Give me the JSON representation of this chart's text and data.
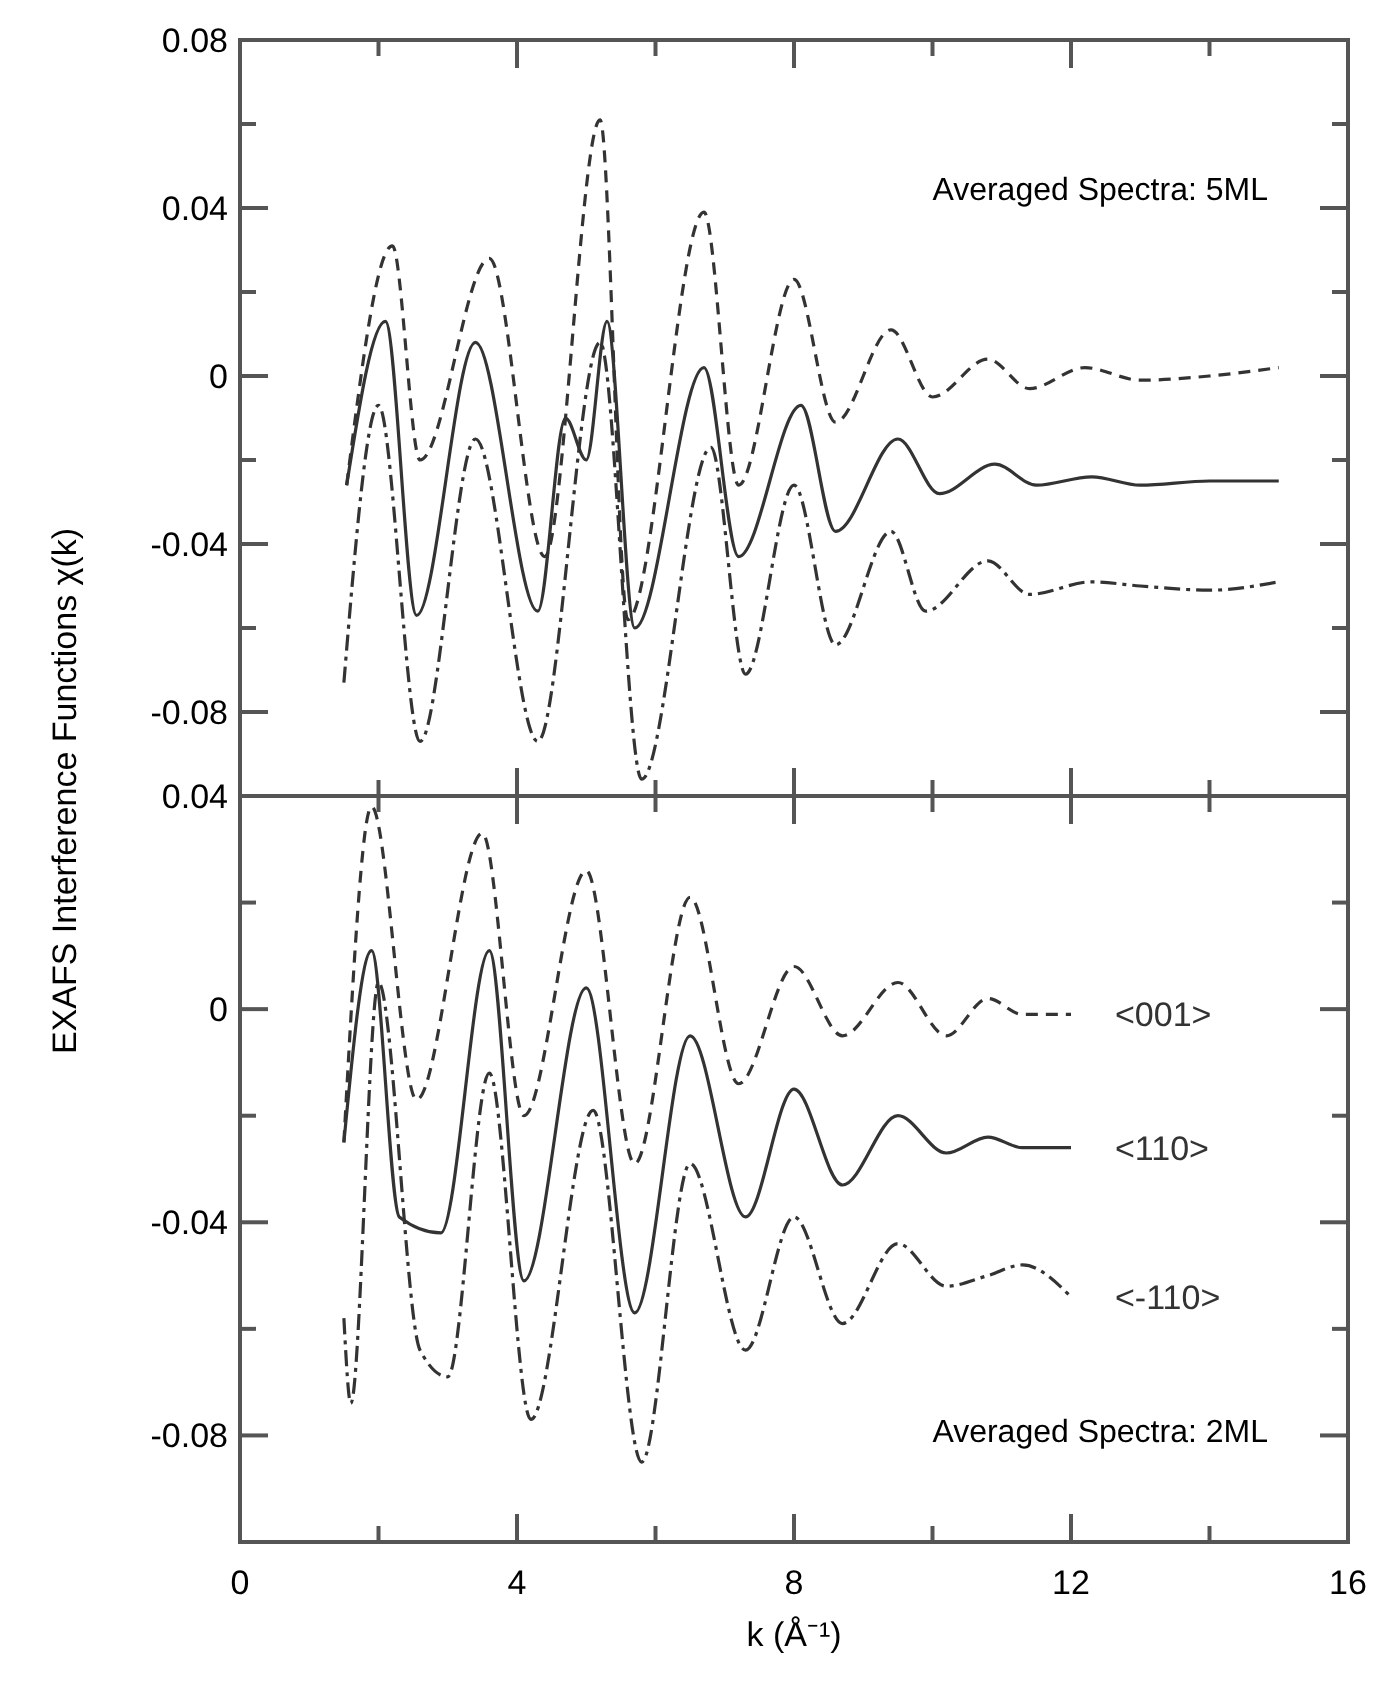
{
  "chart_data": [
    {
      "type": "line",
      "ylabel": "EXAFS Interference Functions χ(k)",
      "annotations": [
        "Averaged Spectra: 5ML"
      ],
      "xlim": [
        0,
        16
      ],
      "xticks": [
        0,
        {
          "value": 2,
          "label": null
        },
        4,
        {
          "value": 6,
          "label": null
        },
        8,
        {
          "value": 10,
          "label": null
        },
        12,
        {
          "value": 14,
          "label": null
        },
        16
      ],
      "ylim": [
        -0.1,
        0.08
      ],
      "yticks": [
        0.08,
        {
          "value": 0.06,
          "label": null
        },
        0.04,
        {
          "value": 0.02,
          "label": null
        },
        0,
        {
          "value": -0.02,
          "label": null
        },
        -0.04,
        {
          "value": -0.06,
          "label": null
        },
        -0.08
      ],
      "tick_labels": "y",
      "grid": false,
      "marker": "none",
      "series": [
        {
          "color": "#333333",
          "line_style": "dashed",
          "x": [
            1.54,
            2.2,
            2.6,
            3.6,
            4.4,
            5.2,
            5.6,
            6.7,
            7.2,
            8.0,
            8.6,
            9.4,
            10.0,
            10.8,
            11.4,
            12.2,
            13,
            14,
            15
          ],
          "values": [
            -0.026,
            0.031,
            -0.02,
            0.028,
            -0.043,
            0.061,
            -0.058,
            0.039,
            -0.026,
            0.023,
            -0.011,
            0.011,
            -0.005,
            0.004,
            -0.003,
            0.002,
            -0.001,
            0.0,
            0.002
          ]
        },
        {
          "color": "#333333",
          "line_style": "solid",
          "x": [
            1.54,
            2.1,
            2.55,
            3.4,
            4.3,
            4.7,
            5.0,
            5.3,
            5.7,
            6.7,
            7.2,
            8.1,
            8.6,
            9.5,
            10.1,
            10.9,
            11.5,
            12.3,
            13,
            14,
            15
          ],
          "values": [
            -0.026,
            0.013,
            -0.057,
            0.008,
            -0.056,
            -0.01,
            -0.02,
            0.013,
            -0.06,
            0.002,
            -0.043,
            -0.007,
            -0.037,
            -0.015,
            -0.028,
            -0.021,
            -0.026,
            -0.024,
            -0.026,
            -0.025,
            -0.025
          ]
        },
        {
          "color": "#333333",
          "line_style": "dotted",
          "x": [
            1.5,
            2.0,
            2.6,
            3.4,
            4.3,
            5.2,
            5.8,
            6.8,
            7.3,
            8.0,
            8.6,
            9.4,
            9.9,
            10.8,
            11.4,
            12.3,
            13,
            14,
            15
          ],
          "values": [
            -0.073,
            -0.007,
            -0.087,
            -0.015,
            -0.087,
            0.008,
            -0.096,
            -0.017,
            -0.071,
            -0.026,
            -0.064,
            -0.037,
            -0.056,
            -0.044,
            -0.052,
            -0.049,
            -0.05,
            -0.051,
            -0.049
          ]
        }
      ]
    },
    {
      "type": "line",
      "xlabel": "k (Å⁻¹)",
      "annotations": [
        "Averaged Spectra: 2ML"
      ],
      "xlim": [
        0,
        16
      ],
      "xticks": [
        0,
        {
          "value": 2,
          "label": null
        },
        4,
        {
          "value": 6,
          "label": null
        },
        8,
        {
          "value": 10,
          "label": null
        },
        12,
        {
          "value": 14,
          "label": null
        },
        16
      ],
      "ylim": [
        -0.1,
        0.04
      ],
      "yticks": [
        0.04,
        {
          "value": 0.02,
          "label": null
        },
        0,
        {
          "value": -0.02,
          "label": null
        },
        -0.04,
        {
          "value": -0.06,
          "label": null
        },
        -0.08
      ],
      "grid": false,
      "marker": "none",
      "series": [
        {
          "name": "<001>",
          "color": "#333333",
          "line_style": "dashed",
          "x": [
            1.5,
            1.9,
            2.55,
            3.5,
            4.1,
            5.0,
            5.7,
            6.5,
            7.2,
            8.0,
            8.7,
            9.5,
            10.2,
            10.8,
            11.3,
            12
          ],
          "values": [
            -0.025,
            0.038,
            -0.017,
            0.033,
            -0.02,
            0.026,
            -0.029,
            0.021,
            -0.014,
            0.008,
            -0.005,
            0.005,
            -0.005,
            0.002,
            -0.001,
            -0.001
          ]
        },
        {
          "name": "<110>",
          "color": "#333333",
          "line_style": "solid",
          "x": [
            1.5,
            1.9,
            2.3,
            2.9,
            3.6,
            4.1,
            5.0,
            5.7,
            6.5,
            7.3,
            8.0,
            8.7,
            9.5,
            10.2,
            10.8,
            11.3,
            12
          ],
          "values": [
            -0.025,
            0.011,
            -0.039,
            -0.042,
            0.011,
            -0.051,
            0.004,
            -0.057,
            -0.005,
            -0.039,
            -0.015,
            -0.033,
            -0.02,
            -0.027,
            -0.024,
            -0.026,
            -0.026
          ]
        },
        {
          "name": "<-110>",
          "color": "#333333",
          "line_style": "dotted",
          "x": [
            1.5,
            1.6,
            2.0,
            2.6,
            3.0,
            3.6,
            4.2,
            5.1,
            5.8,
            6.5,
            7.3,
            8.0,
            8.7,
            9.5,
            10.2,
            10.8,
            11.3,
            12
          ],
          "values": [
            -0.058,
            -0.074,
            0.005,
            -0.064,
            -0.069,
            -0.012,
            -0.077,
            -0.019,
            -0.085,
            -0.029,
            -0.064,
            -0.039,
            -0.059,
            -0.044,
            -0.052,
            -0.05,
            -0.048,
            -0.054
          ]
        }
      ]
    }
  ]
}
